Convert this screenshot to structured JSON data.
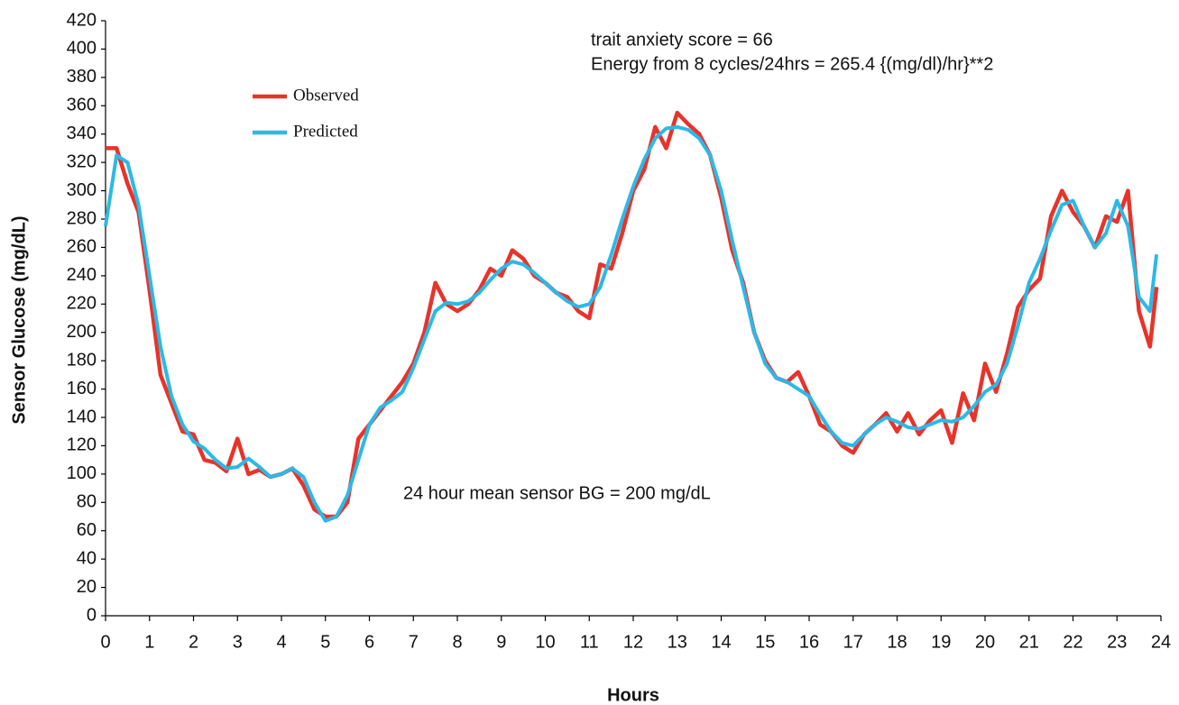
{
  "chart_data": {
    "type": "line",
    "xlabel": "Hours",
    "ylabel": "Sensor Glucose (mg/dL)",
    "annotations": [
      "trait anxiety score = 66",
      "Energy from 8 cycles/24hrs = 265.4 {(mg/dl)/hr}**2",
      "24 hour mean sensor BG = 200 mg/dL"
    ],
    "legend": "upper left",
    "x": [
      0,
      0.25,
      0.5,
      0.75,
      1,
      1.25,
      1.5,
      1.75,
      2,
      2.25,
      2.5,
      2.75,
      3,
      3.25,
      3.5,
      3.75,
      4,
      4.25,
      4.5,
      4.75,
      5,
      5.25,
      5.5,
      5.75,
      6,
      6.25,
      6.5,
      6.75,
      7,
      7.25,
      7.5,
      7.75,
      8,
      8.25,
      8.5,
      8.75,
      9,
      9.25,
      9.5,
      9.75,
      10,
      10.25,
      10.5,
      10.75,
      11,
      11.25,
      11.5,
      11.75,
      12,
      12.25,
      12.5,
      12.75,
      13,
      13.25,
      13.5,
      13.75,
      14,
      14.25,
      14.5,
      14.75,
      15,
      15.25,
      15.5,
      15.75,
      16,
      16.25,
      16.5,
      16.75,
      17,
      17.25,
      17.5,
      17.75,
      18,
      18.25,
      18.5,
      18.75,
      19,
      19.25,
      19.5,
      19.75,
      20,
      20.25,
      20.5,
      20.75,
      21,
      21.25,
      21.5,
      21.75,
      22,
      22.25,
      22.5,
      22.75,
      23,
      23.25,
      23.5,
      23.75,
      23.9
    ],
    "series": [
      {
        "name": "Observed",
        "color": "#e8332a",
        "values": [
          330,
          330,
          305,
          285,
          230,
          170,
          150,
          130,
          128,
          110,
          108,
          102,
          125,
          100,
          103,
          98,
          100,
          104,
          92,
          75,
          70,
          70,
          80,
          125,
          135,
          145,
          155,
          165,
          178,
          200,
          235,
          220,
          215,
          220,
          230,
          245,
          240,
          258,
          252,
          240,
          235,
          228,
          225,
          215,
          210,
          248,
          245,
          270,
          300,
          315,
          345,
          330,
          355,
          347,
          340,
          325,
          295,
          258,
          235,
          200,
          180,
          168,
          165,
          172,
          155,
          135,
          130,
          120,
          115,
          128,
          135,
          143,
          130,
          143,
          128,
          138,
          145,
          122,
          157,
          138,
          178,
          158,
          185,
          218,
          230,
          238,
          282,
          300,
          285,
          275,
          260,
          282,
          278,
          300,
          215,
          190,
          232
        ]
      },
      {
        "name": "Predicted",
        "color": "#2bb9e6",
        "values": [
          275,
          325,
          320,
          290,
          240,
          190,
          155,
          135,
          123,
          118,
          110,
          104,
          105,
          111,
          105,
          98,
          100,
          104,
          98,
          80,
          67,
          70,
          85,
          110,
          135,
          147,
          152,
          158,
          175,
          195,
          215,
          221,
          220,
          222,
          228,
          237,
          245,
          250,
          248,
          242,
          235,
          228,
          222,
          218,
          220,
          232,
          255,
          280,
          303,
          322,
          337,
          344,
          345,
          343,
          337,
          325,
          300,
          265,
          232,
          200,
          178,
          168,
          165,
          160,
          155,
          142,
          130,
          122,
          120,
          128,
          135,
          140,
          137,
          133,
          132,
          135,
          138,
          137,
          140,
          148,
          158,
          163,
          178,
          205,
          235,
          252,
          272,
          290,
          293,
          275,
          260,
          270,
          293,
          275,
          225,
          215,
          255
        ]
      }
    ],
    "xlim": [
      0,
      24
    ],
    "xticks": [
      0,
      1,
      2,
      3,
      4,
      5,
      6,
      7,
      8,
      9,
      10,
      11,
      12,
      13,
      14,
      15,
      16,
      17,
      18,
      19,
      20,
      21,
      22,
      23,
      24
    ],
    "ylim": [
      0,
      420
    ],
    "yticks": [
      0,
      20,
      40,
      60,
      80,
      100,
      120,
      140,
      160,
      180,
      200,
      220,
      240,
      260,
      280,
      300,
      320,
      340,
      360,
      380,
      400,
      420
    ],
    "grid": false
  }
}
